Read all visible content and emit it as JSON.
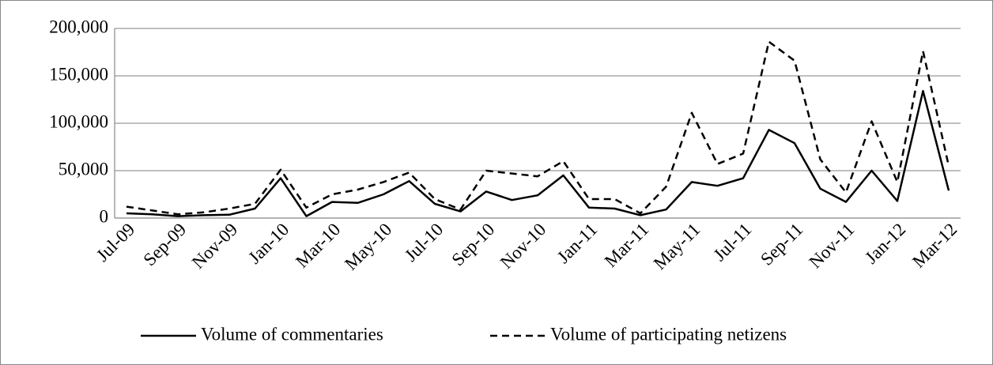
{
  "chart_data": {
    "type": "line",
    "categories": [
      "Jul-09",
      null,
      "Sep-09",
      null,
      "Nov-09",
      null,
      "Jan-10",
      null,
      "Mar-10",
      null,
      "May-10",
      null,
      "Jul-10",
      null,
      "Sep-10",
      null,
      "Nov-10",
      null,
      "Jan-11",
      null,
      "Mar-11",
      null,
      "May-11",
      null,
      "Jul-11",
      null,
      "Sep-11",
      null,
      "Nov-11",
      null,
      "Jan-12",
      null,
      "Mar-12"
    ],
    "series": [
      {
        "name": "Volume of commentaries",
        "color": "#000000",
        "line_style": "solid",
        "values": [
          5000,
          4000,
          2000,
          3000,
          3500,
          10000,
          42000,
          2000,
          17000,
          16000,
          25000,
          39000,
          15000,
          7000,
          28000,
          19000,
          24000,
          45000,
          11000,
          10000,
          3000,
          9000,
          38000,
          34000,
          42000,
          93000,
          79000,
          31000,
          17000,
          50000,
          18000,
          134000,
          29000
        ]
      },
      {
        "name": "Volume of participating netizens",
        "color": "#000000",
        "line_style": "dashed",
        "values": [
          12000,
          8000,
          4000,
          6000,
          10000,
          15000,
          51000,
          11000,
          25000,
          30000,
          38000,
          48000,
          20000,
          9000,
          50000,
          47000,
          44000,
          60000,
          20000,
          20000,
          5000,
          33000,
          111000,
          57000,
          68000,
          186000,
          166000,
          62000,
          27000,
          102000,
          38000,
          176000,
          55000
        ]
      }
    ],
    "ylim": [
      0,
      200000
    ],
    "yticks": [
      0,
      {
        "value": 50000,
        "label": "50,000"
      },
      {
        "value": 100000,
        "label": "100,000"
      },
      {
        "value": 150000,
        "label": "150,000"
      },
      {
        "value": 200000,
        "label": "200,000"
      }
    ],
    "grid": true,
    "legend": "bottom"
  }
}
